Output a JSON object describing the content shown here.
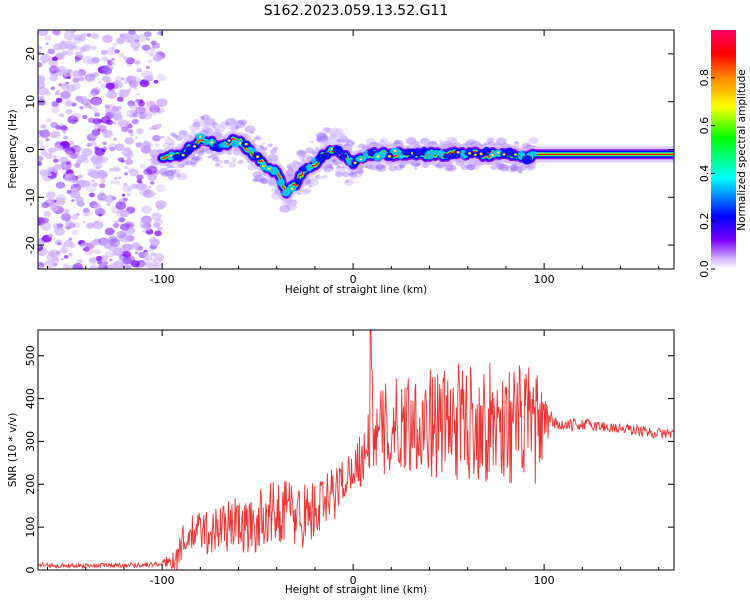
{
  "figure": {
    "title": "S162.2023.059.13.52.G11"
  },
  "chart_data": [
    {
      "type": "heatmap",
      "xlabel": "Height of straight line (km)",
      "ylabel": "Frequency (Hz)",
      "xlim": [
        -165,
        168
      ],
      "ylim": [
        -25,
        25
      ],
      "x_ticks": [
        -100,
        0,
        100
      ],
      "y_ticks": [
        -20,
        -10,
        0,
        10,
        20
      ],
      "colorbar": {
        "label": "Normalized spectral amplitude",
        "range": [
          0.0,
          1.0
        ],
        "ticks": [
          0.0,
          0.2,
          0.4,
          0.6,
          0.8
        ],
        "colors": [
          "#ffffff",
          "#7b00ff",
          "#0000ff",
          "#00ffff",
          "#00ff00",
          "#ffff00",
          "#ff8800",
          "#ff0000",
          "#ff0066"
        ]
      },
      "ridge": {
        "description": "narrow band of high amplitude near 0 Hz",
        "x": [
          -100,
          -90,
          -80,
          -70,
          -60,
          -50,
          -40,
          -35,
          -30,
          -25,
          -20,
          -15,
          -10,
          -5,
          0,
          10,
          20,
          40,
          60,
          80,
          90,
          95,
          100,
          120,
          140,
          165
        ],
        "y": [
          -2,
          -1,
          2,
          1,
          2,
          -2,
          -5,
          -9,
          -7,
          -4,
          -3,
          -1,
          0,
          -1,
          -3,
          -1,
          -1,
          -1,
          -1,
          -1,
          -2,
          -1,
          -1,
          -1,
          -1,
          -1
        ]
      },
      "noise_region": {
        "x_range": [
          -165,
          -100
        ],
        "y_range": [
          -25,
          25
        ]
      }
    },
    {
      "type": "line",
      "xlabel": "Height of straight line (km)",
      "ylabel": "SNR (10 * v/v)",
      "xlim": [
        -165,
        168
      ],
      "ylim": [
        0,
        560
      ],
      "x_ticks": [
        -100,
        0,
        100
      ],
      "y_ticks": [
        0,
        100,
        200,
        300,
        400,
        500
      ],
      "color": "#ee3333",
      "series": [
        {
          "x": [
            -165,
            -150,
            -130,
            -110,
            -100,
            -92,
            -90,
            -85,
            -80,
            -75,
            -70,
            -65,
            -60,
            -55,
            -50,
            -45,
            -40,
            -35,
            -30,
            -25,
            -20,
            -15,
            -10,
            -5,
            0,
            5,
            8,
            10,
            12,
            15,
            20,
            30,
            40,
            50,
            60,
            70,
            80,
            90,
            95,
            100,
            105,
            110,
            120,
            130,
            140,
            150,
            160,
            168
          ],
          "y": [
            12,
            10,
            11,
            12,
            14,
            30,
            60,
            80,
            95,
            85,
            100,
            105,
            110,
            95,
            110,
            135,
            130,
            150,
            125,
            130,
            140,
            150,
            180,
            210,
            240,
            265,
            300,
            380,
            290,
            320,
            330,
            350,
            345,
            340,
            350,
            345,
            340,
            340,
            335,
            330,
            345,
            335,
            340,
            335,
            330,
            325,
            318,
            320
          ]
        }
      ],
      "noise_amplitude": {
        "x": [
          -165,
          -100,
          -90,
          -70,
          -50,
          -30,
          -10,
          0,
          10,
          30,
          60,
          95,
          105,
          168
        ],
        "amp": [
          5,
          6,
          40,
          60,
          70,
          80,
          70,
          40,
          110,
          120,
          140,
          140,
          15,
          12
        ]
      },
      "peak": {
        "x": 9,
        "y": 560
      }
    }
  ]
}
